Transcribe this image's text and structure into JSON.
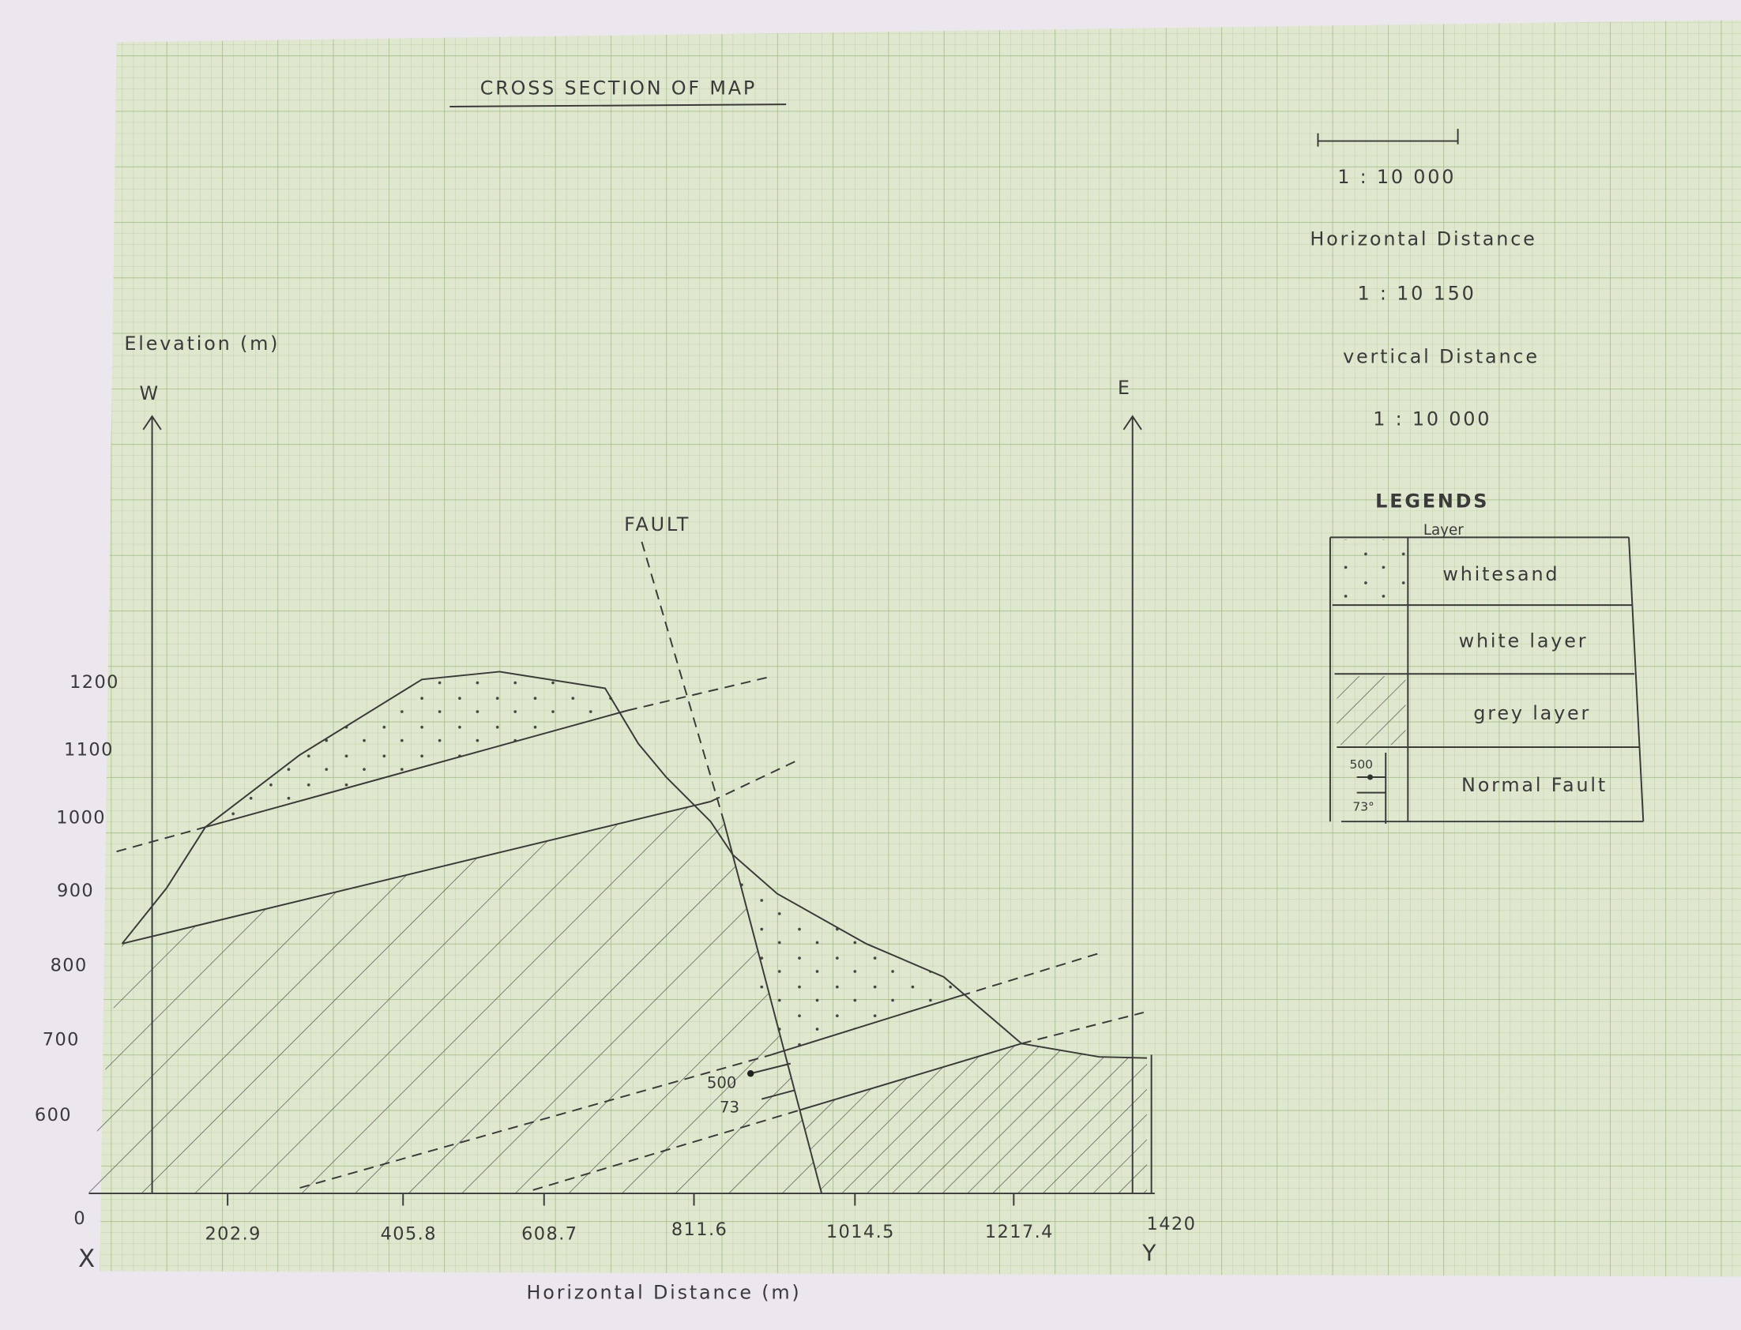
{
  "title": "CROSS SECTION OF MAP",
  "scale": {
    "bar_ratio": "1 : 10 000",
    "horizontal_label": "Horizontal Distance",
    "horizontal_ratio": "1 : 10 150",
    "vertical_label": "vertical Distance",
    "vertical_ratio": "1 : 10 000"
  },
  "axes": {
    "y_label": "Elevation (m)",
    "left_direction": "W",
    "right_direction": "E",
    "y_ticks": [
      "1200",
      "1100",
      "1000",
      "900",
      "800",
      "700",
      "600"
    ],
    "x_ticks": [
      "0",
      "202.9",
      "405.8",
      "608.7",
      "811.6",
      "1014.5",
      "1217.4",
      "1420"
    ],
    "x_start": "X",
    "x_end": "Y",
    "x_label": "Horizontal Distance (m)"
  },
  "fault_label": "FAULT",
  "fault_mark": {
    "strike": "500",
    "dip": "73"
  },
  "legend": {
    "title": "LEGENDS",
    "column": "Layer",
    "rows": [
      "whitesand",
      "white layer",
      "grey layer",
      "Normal Fault"
    ],
    "fault_symbol": {
      "strike": "500",
      "dip": "73°"
    }
  }
}
